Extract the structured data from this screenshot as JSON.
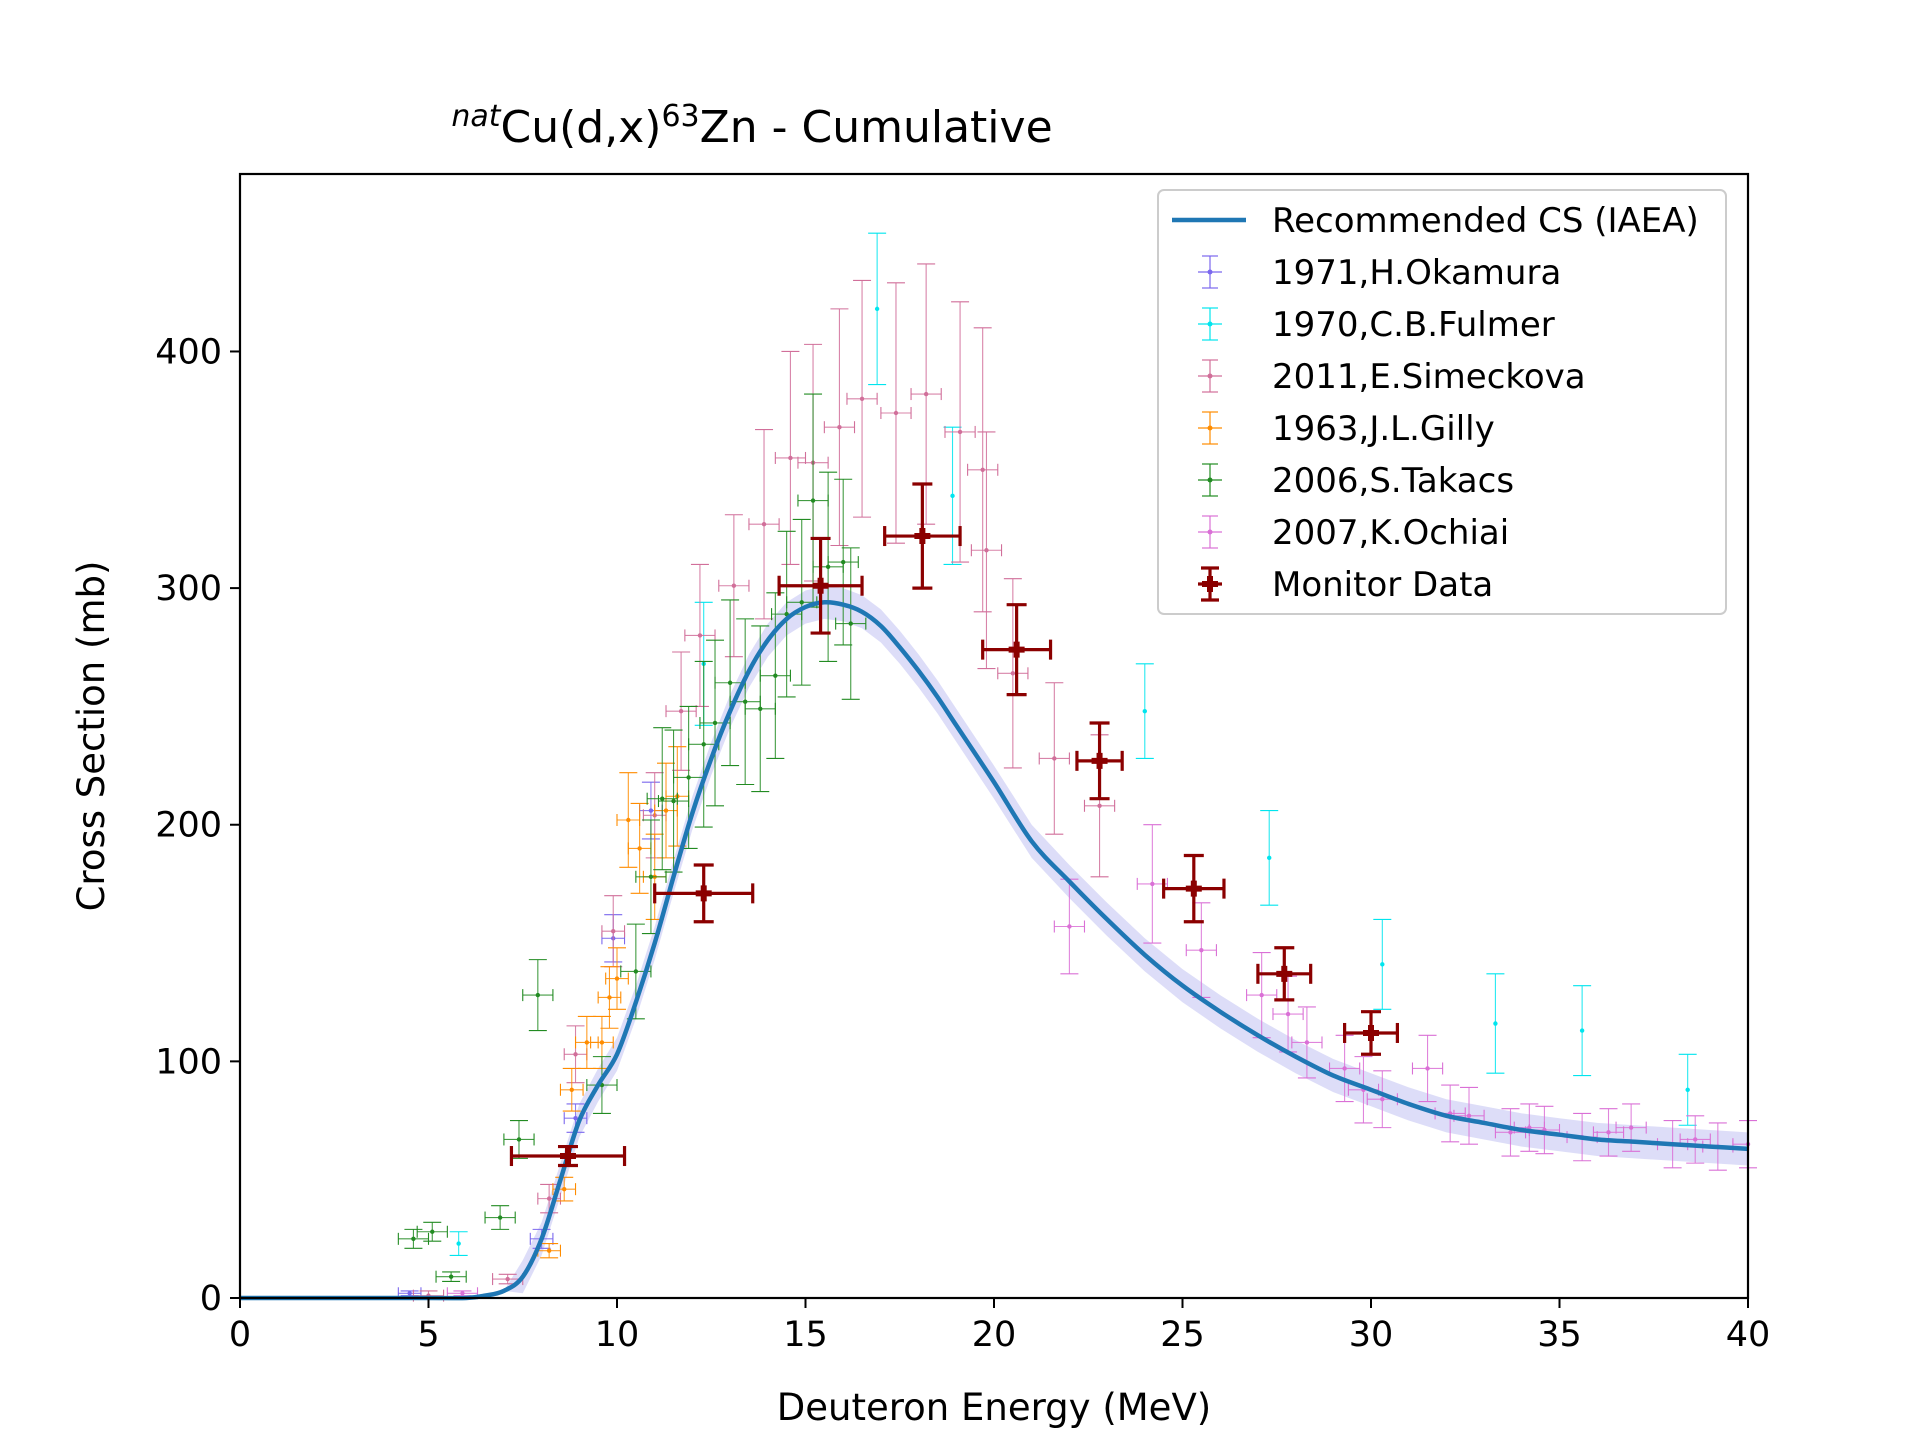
{
  "chart_data": {
    "type": "scatter",
    "title": {
      "sup1": "nat",
      "main1": "Cu(d,x)",
      "sup2": "63",
      "main2": "Zn - Cumulative"
    },
    "xlabel": "Deuteron Energy (MeV)",
    "ylabel": "Cross Section (mb)",
    "xlim": [
      0,
      40
    ],
    "ylim": [
      0,
      475
    ],
    "xticks": [
      0,
      5,
      10,
      15,
      20,
      25,
      30,
      35,
      40
    ],
    "yticks": [
      0,
      100,
      200,
      300,
      400
    ],
    "grid": false,
    "legend_position": "top-right",
    "recommended": {
      "name": "Recommended CS (IAEA)",
      "color": "#1f77b4",
      "band_color": "#b4b4f0",
      "x": [
        0,
        5,
        6,
        6.5,
        7,
        7.5,
        8,
        8.5,
        9,
        9.5,
        10,
        10.5,
        11,
        11.5,
        12,
        12.5,
        13,
        13.5,
        14,
        14.5,
        15,
        15.5,
        16,
        16.5,
        17,
        17.5,
        18,
        18.5,
        19,
        20,
        21,
        22,
        23,
        24,
        25,
        26,
        27,
        28,
        29,
        30,
        31,
        32,
        33,
        34,
        35,
        36,
        37,
        38,
        39,
        40
      ],
      "y": [
        0,
        0,
        0,
        1,
        3,
        9,
        25,
        50,
        75,
        90,
        103,
        125,
        150,
        178,
        205,
        228,
        248,
        265,
        278,
        287,
        292,
        294,
        293,
        290,
        284,
        275,
        265,
        254,
        242,
        218,
        193,
        176,
        160,
        145,
        132,
        121,
        111,
        102,
        94,
        88,
        82,
        77,
        74,
        71,
        69,
        67,
        66,
        65,
        64,
        63
      ],
      "band_halfwidth": 7
    },
    "series": [
      {
        "name": "1971,H.Okamura",
        "color": "#7b68ee",
        "points": [
          [
            4.5,
            2,
            0.3,
            1
          ],
          [
            8,
            25,
            0.3,
            4
          ],
          [
            8.9,
            76,
            0.3,
            6
          ],
          [
            9.9,
            152,
            0.3,
            10
          ],
          [
            10.9,
            206,
            0.3,
            12
          ]
        ]
      },
      {
        "name": "1970,C.B.Fulmer",
        "color": "#00e5ee",
        "points": [
          [
            5.8,
            23,
            0,
            5
          ],
          [
            12.3,
            268,
            0,
            26
          ],
          [
            16.9,
            418,
            0,
            32
          ],
          [
            18.9,
            339,
            0,
            29
          ],
          [
            24,
            248,
            0,
            20
          ],
          [
            27.3,
            186,
            0,
            20
          ],
          [
            30.3,
            141,
            0,
            19
          ],
          [
            33.3,
            116,
            0,
            21
          ],
          [
            35.6,
            113,
            0,
            19
          ],
          [
            38.4,
            88,
            0,
            15
          ]
        ]
      },
      {
        "name": "2011,E.Simeckova",
        "color": "#d16f9a",
        "points": [
          [
            5,
            1,
            0.4,
            2
          ],
          [
            7.1,
            8,
            0.4,
            2
          ],
          [
            8.2,
            42,
            0.3,
            6
          ],
          [
            8.9,
            103,
            0.3,
            12
          ],
          [
            9.9,
            155,
            0.3,
            15
          ],
          [
            11,
            204,
            0.3,
            18
          ],
          [
            11.7,
            248,
            0.4,
            25
          ],
          [
            12.2,
            280,
            0.4,
            30
          ],
          [
            13.1,
            301,
            0.4,
            30
          ],
          [
            13.9,
            327,
            0.4,
            40
          ],
          [
            14.6,
            355,
            0.4,
            45
          ],
          [
            15.2,
            353,
            0.4,
            50
          ],
          [
            15.9,
            368,
            0.4,
            50
          ],
          [
            16.5,
            380,
            0.4,
            50
          ],
          [
            17.4,
            374,
            0.4,
            55
          ],
          [
            18.2,
            382,
            0.4,
            55
          ],
          [
            19.1,
            366,
            0.4,
            55
          ],
          [
            19.7,
            350,
            0.4,
            60
          ],
          [
            19.8,
            316,
            0.4,
            50
          ],
          [
            20.5,
            264,
            0.4,
            40
          ],
          [
            21.6,
            228,
            0.4,
            32
          ],
          [
            22.8,
            208,
            0.4,
            30
          ]
        ]
      },
      {
        "name": "1963,J.L.Gilly",
        "color": "#ff8c00",
        "points": [
          [
            8.2,
            20,
            0.3,
            3
          ],
          [
            8.6,
            46,
            0.3,
            5
          ],
          [
            8.8,
            88,
            0.3,
            9
          ],
          [
            9.2,
            108,
            0.3,
            11
          ],
          [
            9.6,
            108,
            0.3,
            11
          ],
          [
            9.8,
            127,
            0.3,
            13
          ],
          [
            10,
            135,
            0.3,
            13
          ],
          [
            10.3,
            202,
            0.3,
            20
          ],
          [
            10.6,
            190,
            0.3,
            19
          ],
          [
            11,
            178,
            0.3,
            18
          ],
          [
            11.3,
            206,
            0.3,
            20
          ],
          [
            11.6,
            212,
            0.3,
            21
          ]
        ]
      },
      {
        "name": "2006,S.Takacs",
        "color": "#228b22",
        "points": [
          [
            4.6,
            25,
            0.4,
            4
          ],
          [
            5.1,
            28,
            0.4,
            4
          ],
          [
            5.6,
            9,
            0.4,
            2
          ],
          [
            6.9,
            34,
            0.4,
            5
          ],
          [
            7.4,
            67,
            0.4,
            8
          ],
          [
            7.9,
            128,
            0.4,
            15
          ],
          [
            9.6,
            90,
            0.4,
            12
          ],
          [
            10.5,
            138,
            0.4,
            20
          ],
          [
            10.9,
            178,
            0.4,
            24
          ],
          [
            11.2,
            211,
            0.4,
            30
          ],
          [
            11.5,
            210,
            0.4,
            30
          ],
          [
            11.9,
            220,
            0.4,
            30
          ],
          [
            12.3,
            234,
            0.4,
            35
          ],
          [
            12.6,
            243,
            0.4,
            35
          ],
          [
            13,
            260,
            0.4,
            35
          ],
          [
            13.4,
            252,
            0.4,
            35
          ],
          [
            13.8,
            249,
            0.4,
            35
          ],
          [
            14.2,
            263,
            0.4,
            35
          ],
          [
            14.5,
            289,
            0.4,
            35
          ],
          [
            14.9,
            294,
            0.4,
            35
          ],
          [
            15.2,
            337,
            0.4,
            45
          ],
          [
            15.6,
            309,
            0.4,
            40
          ],
          [
            16,
            311,
            0.4,
            35
          ],
          [
            16.2,
            285,
            0.4,
            32
          ]
        ]
      },
      {
        "name": "2007,K.Ochiai",
        "color": "#da70d6",
        "points": [
          [
            5.9,
            2,
            0.4,
            1
          ],
          [
            22,
            157,
            0.4,
            20
          ],
          [
            24.2,
            175,
            0.4,
            25
          ],
          [
            25.5,
            147,
            0.4,
            20
          ],
          [
            27.1,
            128,
            0.4,
            18
          ],
          [
            27.8,
            120,
            0.4,
            16
          ],
          [
            28.3,
            108,
            0.4,
            15
          ],
          [
            29.3,
            97,
            0.4,
            14
          ],
          [
            29.8,
            88,
            0.4,
            14
          ],
          [
            30.3,
            84,
            0.4,
            12
          ],
          [
            31.5,
            97,
            0.4,
            14
          ],
          [
            32.1,
            78,
            0.4,
            12
          ],
          [
            32.6,
            77,
            0.4,
            12
          ],
          [
            33.7,
            70,
            0.4,
            10
          ],
          [
            34.2,
            72,
            0.4,
            10
          ],
          [
            34.6,
            71,
            0.4,
            10
          ],
          [
            35.6,
            68,
            0.4,
            10
          ],
          [
            36.3,
            70,
            0.4,
            10
          ],
          [
            36.9,
            72,
            0.4,
            10
          ],
          [
            38,
            65,
            0.4,
            10
          ],
          [
            38.6,
            67,
            0.4,
            10
          ],
          [
            39.2,
            64,
            0.4,
            10
          ],
          [
            40,
            65,
            0.4,
            10
          ]
        ]
      }
    ],
    "monitor": {
      "name": "Monitor Data",
      "color": "#8b0000",
      "points": [
        [
          8.7,
          60,
          1.5,
          4
        ],
        [
          12.3,
          171,
          1.3,
          12
        ],
        [
          15.4,
          301,
          1.1,
          20
        ],
        [
          18.1,
          322,
          1.0,
          22
        ],
        [
          20.6,
          274,
          0.9,
          19
        ],
        [
          22.8,
          227,
          0.6,
          16
        ],
        [
          25.3,
          173,
          0.8,
          14
        ],
        [
          27.7,
          137,
          0.7,
          11
        ],
        [
          30,
          112,
          0.7,
          9
        ]
      ]
    }
  }
}
